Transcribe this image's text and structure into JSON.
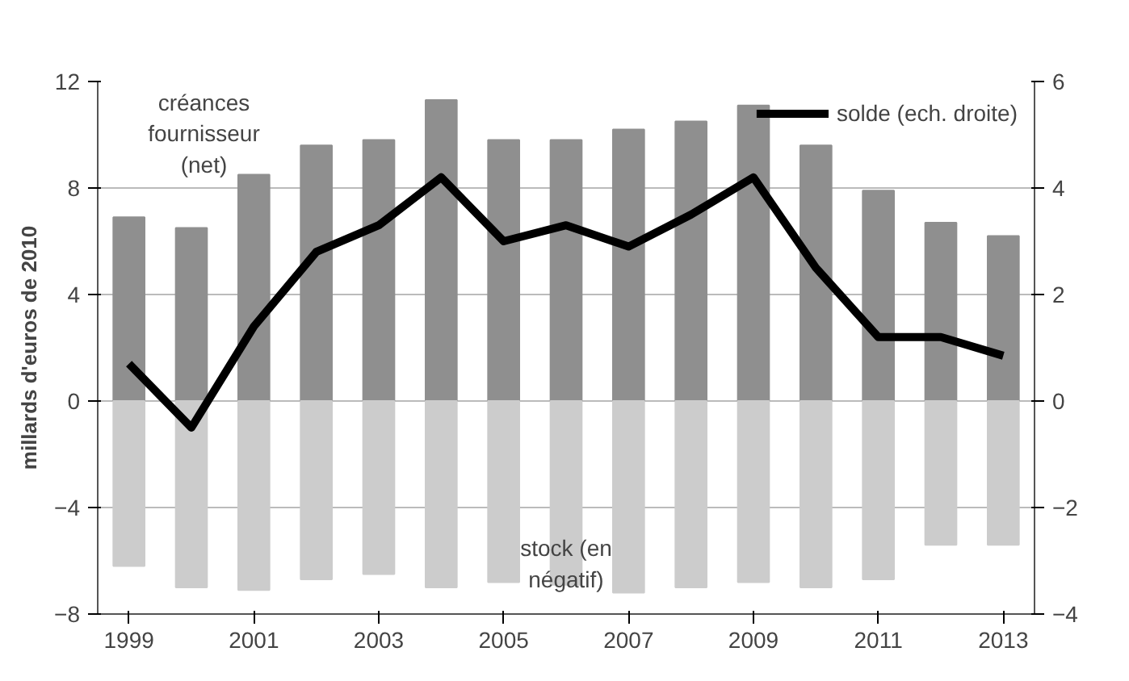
{
  "chart_data": {
    "type": "bar",
    "ylabel": "millards d'euros de 2010",
    "x": [
      1999,
      2000,
      2001,
      2002,
      2003,
      2004,
      2005,
      2006,
      2007,
      2008,
      2009,
      2010,
      2011,
      2012,
      2013
    ],
    "xlim": [
      1998.5,
      2013.5
    ],
    "xticks": [
      1999,
      2001,
      2003,
      2005,
      2007,
      2009,
      2011,
      2013
    ],
    "ylim": [
      -8,
      12
    ],
    "yticks": [
      -8,
      -4,
      0,
      4,
      8,
      12
    ],
    "y2lim": [
      -4,
      6
    ],
    "y2ticks": [
      -4,
      -2,
      0,
      2,
      4,
      6
    ],
    "grid": "y",
    "legend": "top right",
    "stacked": true,
    "series": [
      {
        "name": "créances fournisseur (net)",
        "color": "#8f8f8f",
        "values": [
          6.9,
          6.5,
          8.5,
          9.6,
          9.8,
          11.3,
          9.8,
          9.8,
          10.2,
          10.5,
          11.1,
          9.6,
          7.9,
          6.7,
          6.2
        ]
      },
      {
        "name": "stock (en négatif)",
        "color": "#cccccc",
        "values": [
          -6.2,
          -7.0,
          -7.1,
          -6.7,
          -6.5,
          -7.0,
          -6.8,
          -6.9,
          -7.2,
          -7.0,
          -6.8,
          -7.0,
          -6.7,
          -5.4,
          -5.4
        ]
      },
      {
        "name": "solde (ech. droite)",
        "type": "line",
        "axis": "y2",
        "color": "#000000",
        "values": [
          0.7,
          -0.5,
          1.4,
          2.8,
          3.3,
          4.2,
          3.0,
          3.3,
          2.9,
          3.5,
          4.2,
          2.5,
          1.2,
          1.2,
          0.85
        ]
      }
    ]
  }
}
